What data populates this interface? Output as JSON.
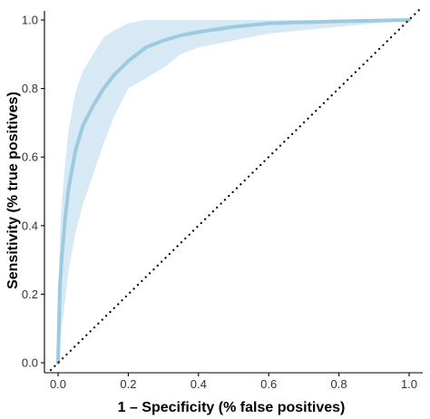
{
  "chart_data": {
    "type": "line",
    "title": "",
    "xlabel": "1 – Specificity (% false positives)",
    "ylabel": "Sensitivity (% true positives)",
    "xlim": [
      0,
      1
    ],
    "ylim": [
      0,
      1
    ],
    "x_ticks": [
      "0.0",
      "0.2",
      "0.4",
      "0.6",
      "0.8",
      "1.0"
    ],
    "y_ticks": [
      "0.0",
      "0.2",
      "0.4",
      "0.6",
      "0.8",
      "1.0"
    ],
    "grid": false,
    "legend": "none",
    "colors": {
      "curve": "#9ecae1",
      "band": "#d6e9f5",
      "reference": "#000000"
    },
    "series": [
      {
        "x": [
          0.0,
          0.005,
          0.01,
          0.02,
          0.03,
          0.05,
          0.07,
          0.1,
          0.13,
          0.16,
          0.2,
          0.25,
          0.3,
          0.35,
          0.4,
          0.5,
          0.6,
          0.7,
          0.8,
          0.9,
          1.0
        ],
        "y": [
          0.0,
          0.22,
          0.3,
          0.42,
          0.51,
          0.62,
          0.69,
          0.75,
          0.8,
          0.84,
          0.88,
          0.92,
          0.94,
          0.955,
          0.965,
          0.98,
          0.99,
          0.993,
          0.996,
          0.998,
          1.0
        ]
      },
      {
        "x": [
          0.0,
          0.005,
          0.01,
          0.02,
          0.03,
          0.05,
          0.07,
          0.1,
          0.13,
          0.16,
          0.2,
          0.25,
          0.3,
          0.35,
          0.4,
          0.5,
          0.6,
          0.7,
          0.8,
          0.9,
          1.0
        ],
        "y": [
          0.0,
          0.36,
          0.46,
          0.58,
          0.68,
          0.79,
          0.85,
          0.9,
          0.95,
          0.97,
          0.99,
          1.0,
          1.0,
          1.0,
          1.0,
          1.0,
          1.0,
          1.0,
          1.0,
          1.0,
          1.0
        ]
      },
      {
        "x": [
          0.0,
          0.005,
          0.01,
          0.02,
          0.03,
          0.05,
          0.07,
          0.1,
          0.13,
          0.16,
          0.2,
          0.25,
          0.3,
          0.35,
          0.4,
          0.5,
          0.6,
          0.7,
          0.8,
          0.9,
          1.0
        ],
        "y": [
          0.0,
          0.05,
          0.1,
          0.18,
          0.27,
          0.38,
          0.46,
          0.55,
          0.64,
          0.72,
          0.8,
          0.83,
          0.86,
          0.9,
          0.92,
          0.94,
          0.96,
          0.97,
          0.98,
          0.99,
          1.0
        ]
      },
      {
        "x": [
          0,
          1
        ],
        "y": [
          0,
          1
        ]
      }
    ]
  }
}
